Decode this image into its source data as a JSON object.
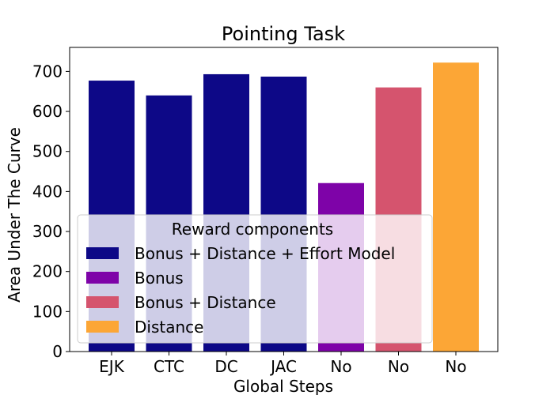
{
  "chart_data": {
    "type": "bar",
    "title": "Pointing Task",
    "xlabel": "Global Steps",
    "ylabel": "Area Under The Curve",
    "categories": [
      "EJK",
      "CTC",
      "DC",
      "JAC",
      "No",
      "No",
      "No"
    ],
    "values": [
      677,
      640,
      693,
      687,
      421,
      660,
      722
    ],
    "bar_colors": [
      "#0d0887",
      "#0d0887",
      "#0d0887",
      "#0d0887",
      "#7e03a8",
      "#d5546e",
      "#fca636"
    ],
    "ylim": [
      0,
      760
    ],
    "yticks": [
      0,
      100,
      200,
      300,
      400,
      500,
      600,
      700
    ],
    "grid": false,
    "legend": {
      "title": "Reward components",
      "placement": "lower-left",
      "entries": [
        {
          "label": "Bonus + Distance + Effort Model",
          "color": "#0d0887"
        },
        {
          "label": "Bonus",
          "color": "#7e03a8"
        },
        {
          "label": "Bonus + Distance",
          "color": "#d5546e"
        },
        {
          "label": "Distance",
          "color": "#fca636"
        }
      ]
    }
  }
}
